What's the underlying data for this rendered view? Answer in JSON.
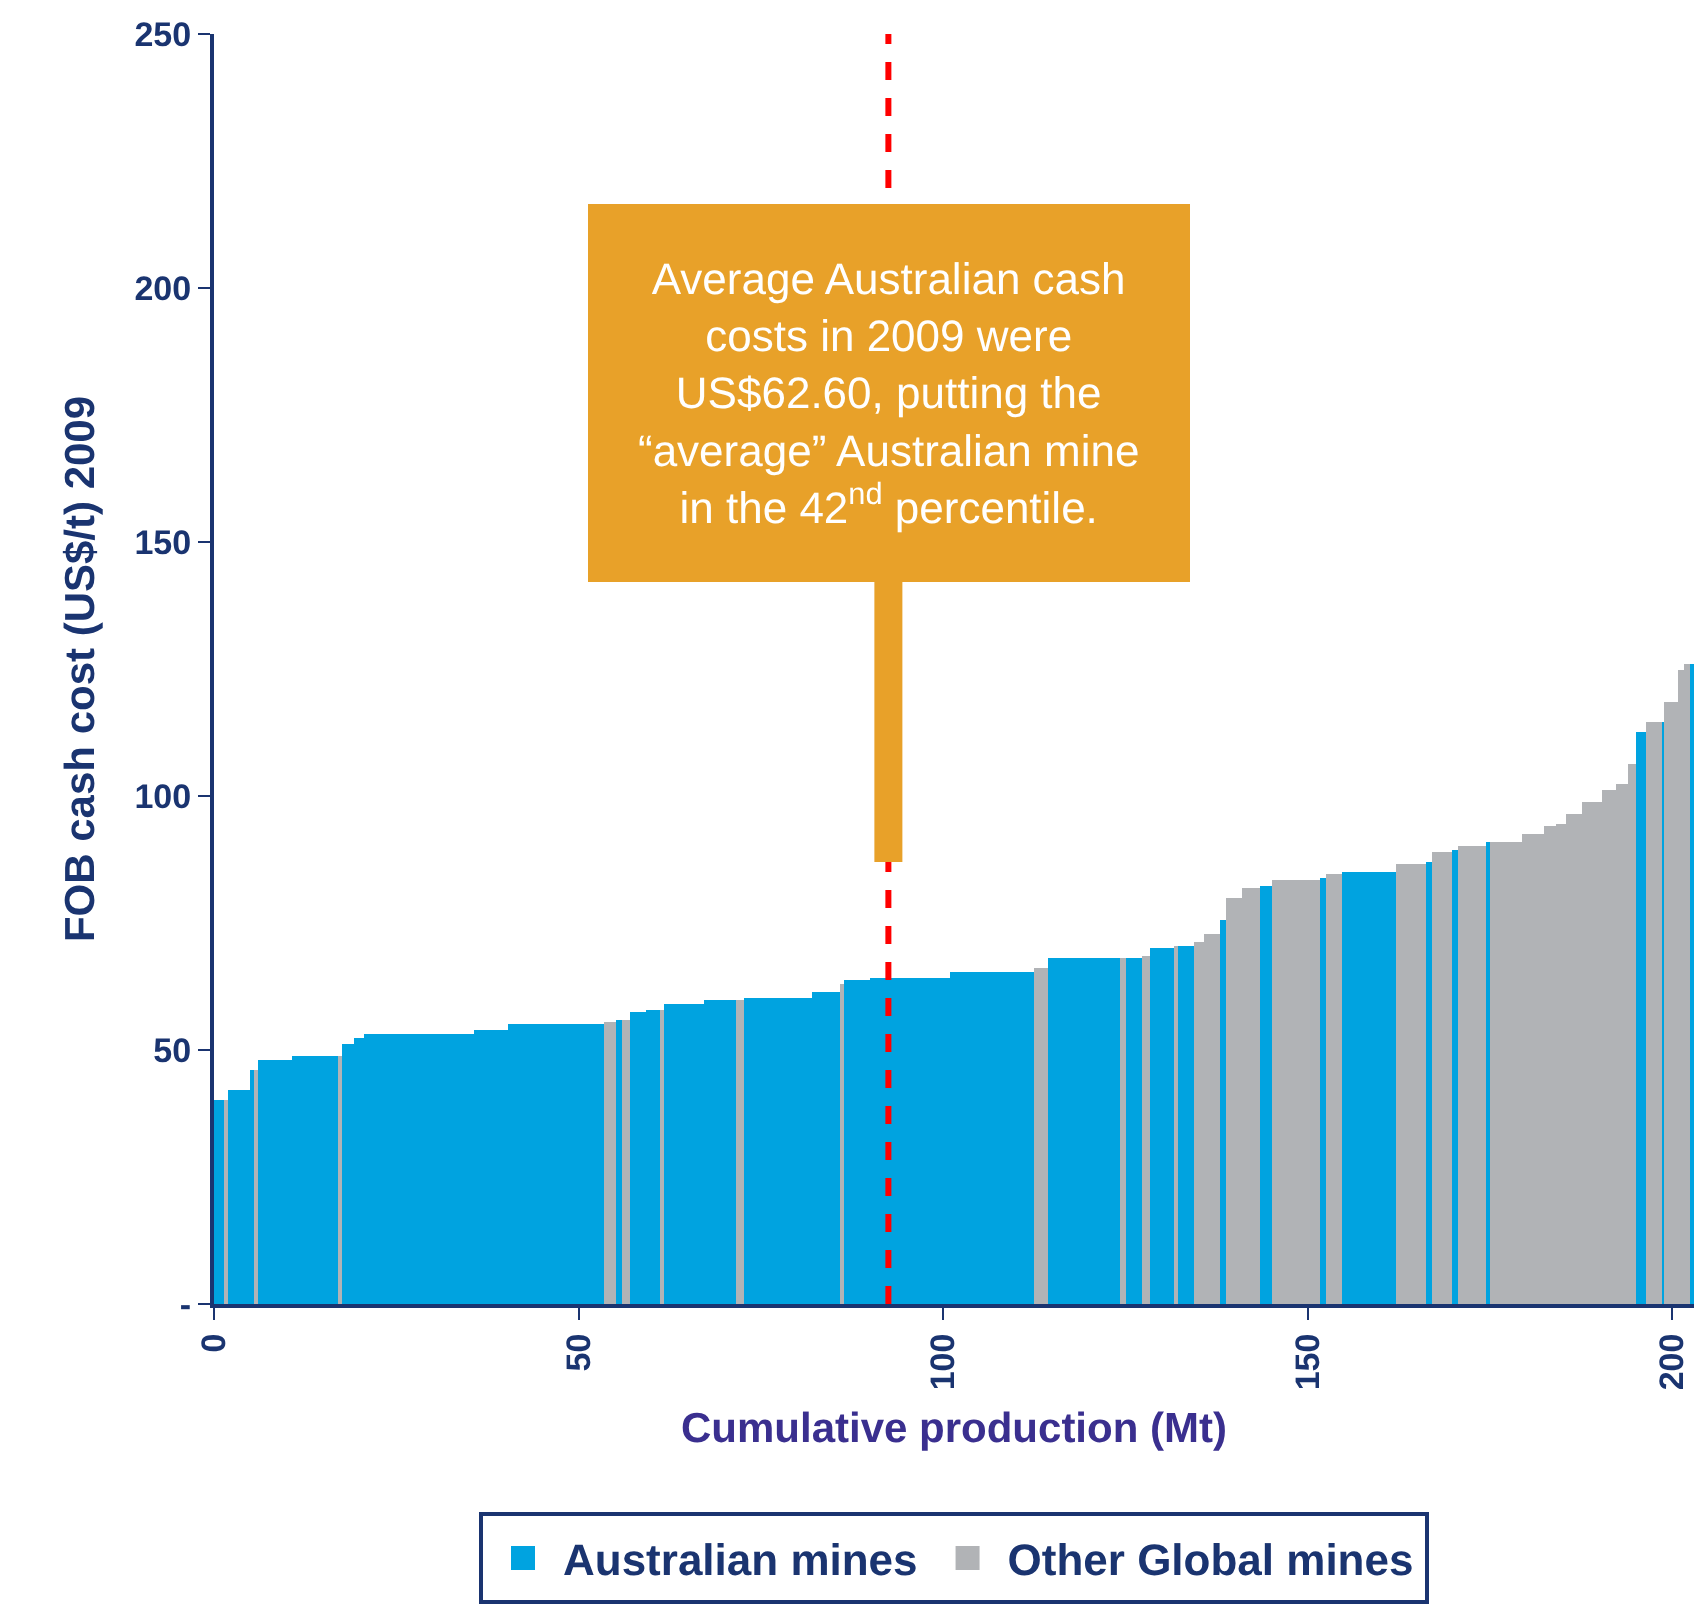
{
  "chart_data": {
    "type": "bar",
    "xlabel": "Cumulative production (Mt)",
    "ylabel": "FOB cash cost (US$/t) 2009",
    "x": [
      0.7,
      1.65,
      3.55,
      5.35,
      5.75,
      8.3,
      13.75,
      17.2,
      18.3,
      19.9,
      28.2,
      38.05,
      41.35,
      47.9,
      54.3,
      55.5,
      56.45,
      58.1,
      60.15,
      61.4,
      64.4,
      69.3,
      72.05,
      77.35,
      84.0,
      86.2,
      88.25,
      95.5,
      106.7,
      113.35,
      119.35,
      124.8,
      126.3,
      127.95,
      130.15,
      132.05,
      133.4,
      135.2,
      137.0,
      138.5,
      140.0,
      142.3,
      144.35,
      148.45,
      152.1,
      153.6,
      158.4,
      164.15,
      166.6,
      168.35,
      170.1,
      172.55,
      174.75,
      177.2,
      180.9,
      183.25,
      184.85,
      186.6,
      189.05,
      191.4,
      193.2,
      194.55,
      195.8,
      197.55,
      198.75,
      199.85,
      201.2,
      202.05,
      202.75
    ],
    "series": [
      {
        "name": "Australian mines",
        "color": "#00a3e0",
        "values": [
          40,
          null,
          42,
          46,
          null,
          48,
          49,
          null,
          51,
          52.5,
          53.3,
          54,
          55,
          55.3,
          null,
          56,
          null,
          57.3,
          58,
          null,
          59,
          60,
          null,
          60.4,
          61.6,
          null,
          63.6,
          64,
          65.5,
          null,
          68,
          null,
          68.3,
          null,
          70,
          null,
          70.6,
          null,
          null,
          75.7,
          null,
          null,
          82.4,
          null,
          84,
          null,
          85.2,
          null,
          87,
          null,
          89.5,
          null,
          91,
          null,
          null,
          null,
          null,
          null,
          null,
          null,
          null,
          null,
          112.6,
          null,
          114.6,
          null,
          null,
          null,
          126
        ]
      },
      {
        "name": "Other Global mines",
        "color": "#b1b3b6",
        "values": [
          null,
          40,
          null,
          null,
          46,
          null,
          null,
          49,
          null,
          null,
          null,
          null,
          null,
          null,
          55.7,
          null,
          56,
          null,
          null,
          58,
          null,
          null,
          60,
          null,
          null,
          63,
          null,
          null,
          null,
          66,
          null,
          68,
          null,
          68.7,
          null,
          70.3,
          null,
          71.4,
          73,
          null,
          80,
          82,
          null,
          83.6,
          null,
          84.8,
          null,
          86.7,
          null,
          89,
          null,
          90,
          null,
          91,
          92.6,
          94,
          94.6,
          96.5,
          99,
          101,
          102.4,
          106.4,
          null,
          114.6,
          null,
          118.5,
          125,
          126,
          null
        ]
      }
    ],
    "xlim": [
      0,
      203
    ],
    "xticks": [
      0,
      50,
      100,
      150,
      200
    ],
    "ylim": [
      0,
      250
    ],
    "yticks": [
      {
        "value": 0,
        "label": "-"
      },
      50,
      100,
      150,
      200,
      250
    ],
    "ref_lines": [
      {
        "axis": "x",
        "value": 92.5,
        "color": "#ff0000",
        "line_style": "dashed"
      }
    ],
    "annotations": [
      {
        "text": "Average Australian cash\ncosts in 2009 were\nUS$62.60, putting the\n“average” Australian mine\nin the 42$^{nd}$ percentile.",
        "x": 92.5,
        "y": 87
      }
    ],
    "legend": "bottom"
  }
}
